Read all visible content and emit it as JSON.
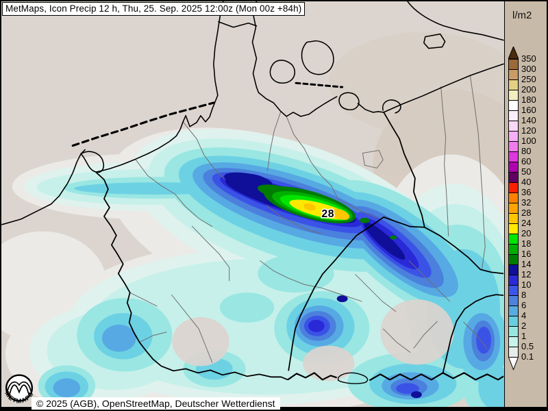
{
  "window": {
    "title": "MetMaps, Icon Precip 12 h, Thu, 25. Sep. 2025 12:00z (Mon 00z +84h)"
  },
  "footer": {
    "attribution": "© 2025 (AGB), OpenStreetMap, Deutscher Wetterdienst"
  },
  "logo": {
    "text": "METMAPS"
  },
  "legend": {
    "unit": "l/m2",
    "panel_bg": "#c8baa8",
    "top_arrow_color": "#4a2c10",
    "bottom_arrow_color": "#ffffff",
    "bottom_label": "0.1",
    "entries": [
      {
        "label": "350",
        "color": "#9c6a38"
      },
      {
        "label": "300",
        "color": "#cb9b66"
      },
      {
        "label": "250",
        "color": "#e3d083"
      },
      {
        "label": "200",
        "color": "#f3eec0"
      },
      {
        "label": "180",
        "color": "#ffffff"
      },
      {
        "label": "160",
        "color": "#fceffc"
      },
      {
        "label": "140",
        "color": "#f9d8f9"
      },
      {
        "label": "120",
        "color": "#f6aff6"
      },
      {
        "label": "100",
        "color": "#ef7bef"
      },
      {
        "label": "80",
        "color": "#dd38dd"
      },
      {
        "label": "60",
        "color": "#ae00ae"
      },
      {
        "label": "50",
        "color": "#600062"
      },
      {
        "label": "40",
        "color": "#fe1e00"
      },
      {
        "label": "36",
        "color": "#ff8000"
      },
      {
        "label": "32",
        "color": "#ffa300"
      },
      {
        "label": "28",
        "color": "#ffc600"
      },
      {
        "label": "24",
        "color": "#ffe900"
      },
      {
        "label": "20",
        "color": "#00e400"
      },
      {
        "label": "18",
        "color": "#00ae00"
      },
      {
        "label": "16",
        "color": "#007c00"
      },
      {
        "label": "14",
        "color": "#0f0f9c"
      },
      {
        "label": "12",
        "color": "#2a2ad8"
      },
      {
        "label": "10",
        "color": "#3c55ea"
      },
      {
        "label": "8",
        "color": "#4c82dc"
      },
      {
        "label": "6",
        "color": "#57ace2"
      },
      {
        "label": "4",
        "color": "#68cfe2"
      },
      {
        "label": "2",
        "color": "#97e7e1"
      },
      {
        "label": "1",
        "color": "#c8f2ec"
      },
      {
        "label": "0.5",
        "color": "#e6ecea"
      }
    ]
  },
  "map": {
    "max_label": "28",
    "levels": {
      "bg": "#dcd5cf",
      "tan": "#d3c5b5",
      "w": "#ebeae6",
      "p05": "#dff2ee",
      "p1": "#c7f0ea",
      "p2": "#99e6e2",
      "p4": "#6dd1e4",
      "p6": "#57a9e3",
      "p8": "#4b80dd",
      "p10": "#3b52e7",
      "p12": "#2929d7",
      "p14": "#0f0f9a",
      "p16": "#007c00",
      "p18": "#00ae00",
      "p20": "#00e500",
      "p24": "#ffe900",
      "p28": "#ffc600",
      "gap": "#dcd4cf"
    }
  }
}
